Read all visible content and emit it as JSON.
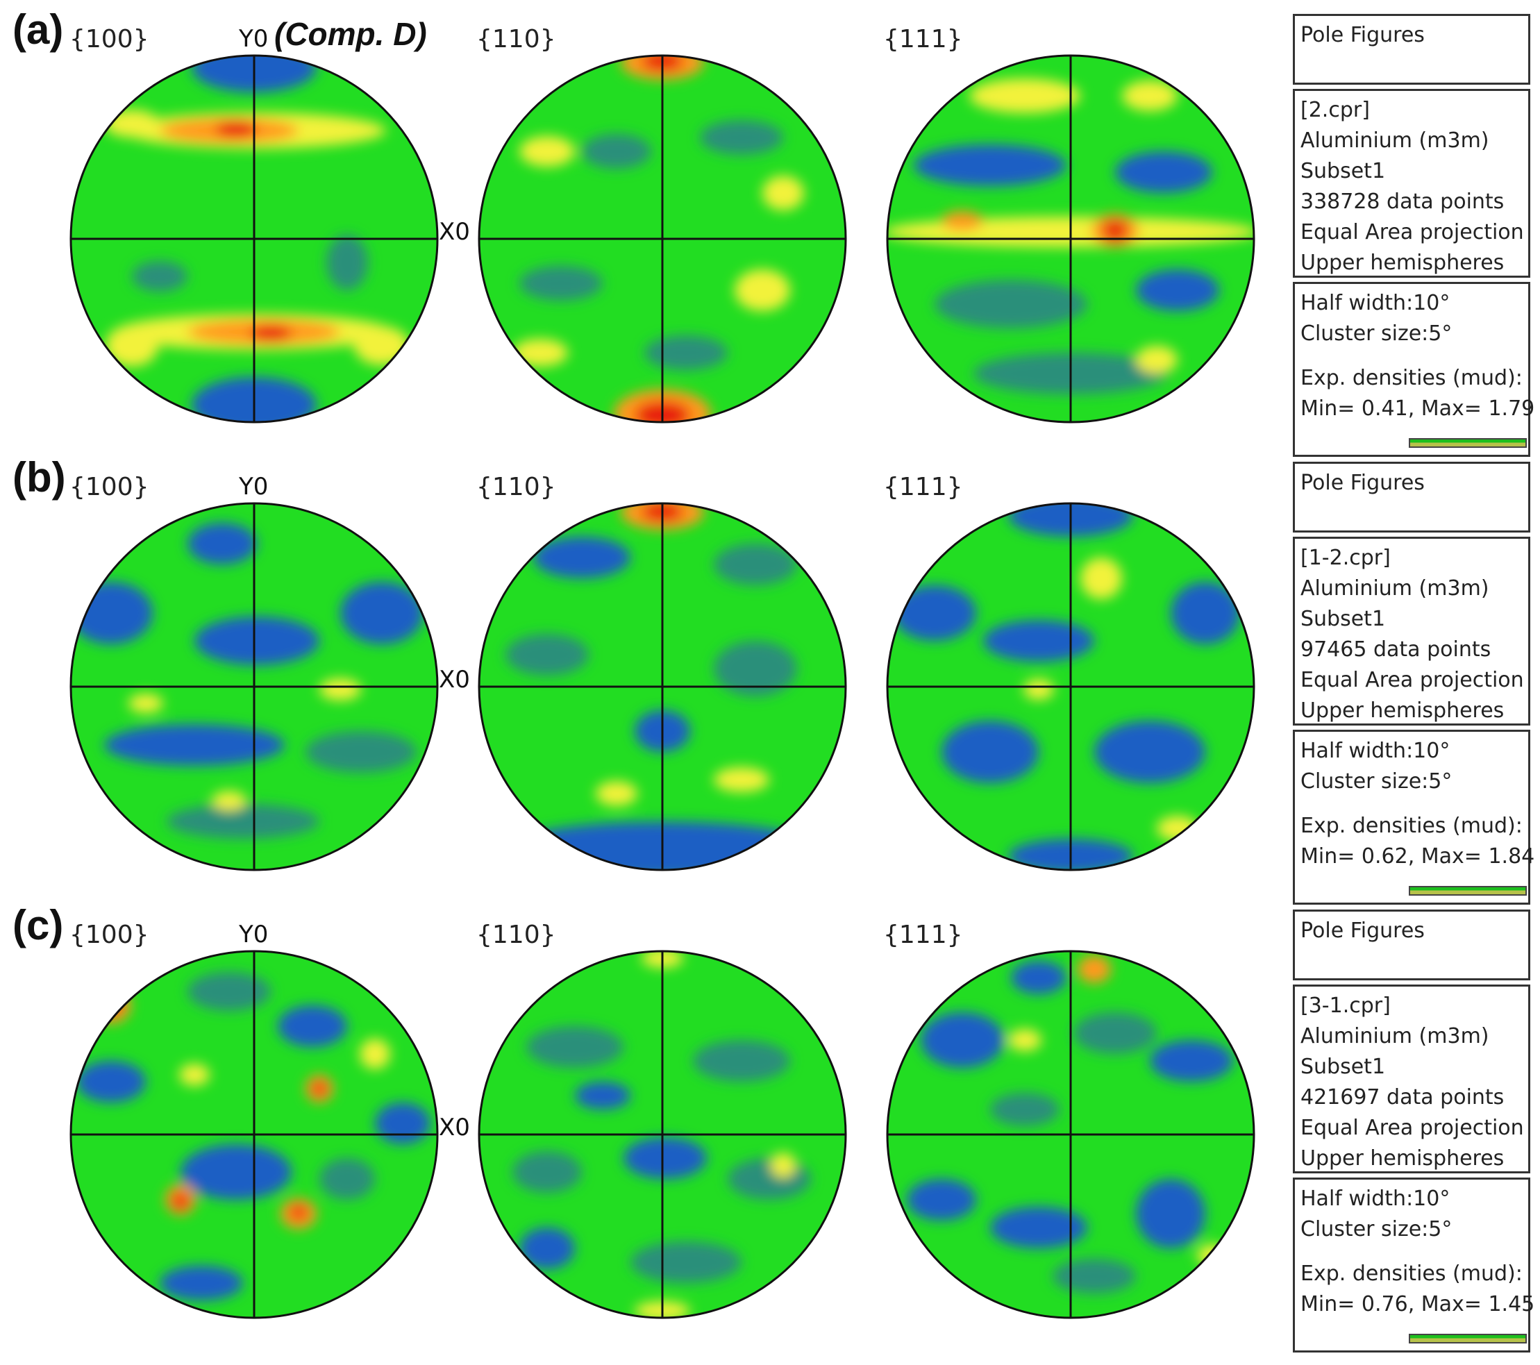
{
  "comp_label": "(Comp. D)",
  "axis_labels": {
    "y": "Y0",
    "x": "X0"
  },
  "panel_title": "Pole Figures",
  "rows": [
    {
      "label": "(a)",
      "figures": [
        "{100}",
        "{110}",
        "{111}"
      ],
      "info": {
        "file": "[2.cpr]",
        "phase": "Aluminium (m3m)",
        "subset": "Subset1",
        "points": "338728 data points",
        "projection": "Equal Area projection",
        "hemisphere": "Upper hemispheres",
        "half_width": "Half width:10°",
        "cluster": "Cluster size:5°",
        "densities": "Exp. densities (mud):",
        "minmax": "Min= 0.41, Max= 1.79"
      }
    },
    {
      "label": "(b)",
      "figures": [
        "{100}",
        "{110}",
        "{111}"
      ],
      "info": {
        "file": "[1-2.cpr]",
        "phase": "Aluminium (m3m)",
        "subset": "Subset1",
        "points": "97465 data points",
        "projection": "Equal Area projection",
        "hemisphere": "Upper hemispheres",
        "half_width": "Half width:10°",
        "cluster": "Cluster size:5°",
        "densities": "Exp. densities (mud):",
        "minmax": "Min= 0.62, Max= 1.84"
      }
    },
    {
      "label": "(c)",
      "figures": [
        "{100}",
        "{110}",
        "{111}"
      ],
      "info": {
        "file": "[3-1.cpr]",
        "phase": "Aluminium (m3m)",
        "subset": "Subset1",
        "points": "421697 data points",
        "projection": "Equal Area projection",
        "hemisphere": "Upper hemispheres",
        "half_width": "Half width:10°",
        "cluster": "Cluster size:5°",
        "densities": "Exp. densities (mud):",
        "minmax": "Min= 0.76, Max= 1.45"
      }
    }
  ],
  "colors": {
    "background": "#22dd22",
    "low": "#1f5fc4",
    "mid_low": "#2a8f7a",
    "high": "#f2f23a",
    "higher": "#ff9a1a",
    "peak": "#e81e10"
  }
}
